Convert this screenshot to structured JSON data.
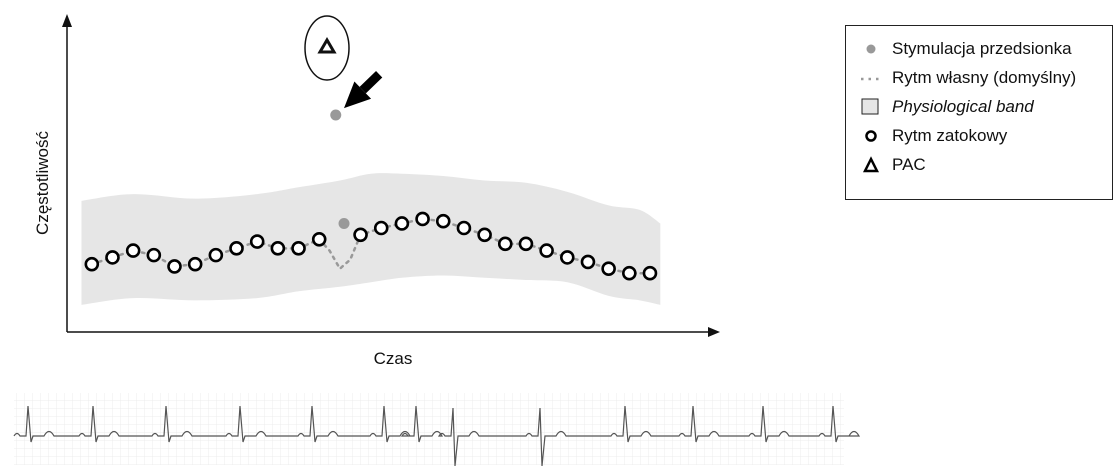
{
  "chart_data": {
    "type": "scatter",
    "xlabel": "Czas",
    "ylabel": "Częstotliwość",
    "legend_position": "top-right",
    "colors": {
      "sinus": "#000000",
      "atrial_pacing": "#999999",
      "intrinsic_rhythm": "#999999",
      "band": "#e6e6e6",
      "pac": "#000000"
    },
    "legend": [
      {
        "symbol": "filled-circle-gray",
        "label": "Stymulacja przedsionka",
        "italic": false
      },
      {
        "symbol": "dotted-line-gray",
        "label": "Rytm własny (domyślny)",
        "italic": false
      },
      {
        "symbol": "gray-box",
        "label": "Physiological band",
        "italic": true
      },
      {
        "symbol": "open-circle",
        "label": "Rytm zatokowy",
        "italic": false
      },
      {
        "symbol": "triangle",
        "label": "PAC",
        "italic": false
      }
    ],
    "series": [
      {
        "name": "Rytm zatokowy",
        "marker": "open-circle",
        "x": [
          1,
          2,
          3,
          4,
          5,
          6,
          7,
          8,
          9,
          10,
          11,
          12,
          14,
          15,
          16,
          17,
          18,
          19,
          20,
          21,
          22,
          23,
          24,
          25,
          26,
          27,
          28
        ],
        "y": [
          30,
          33,
          36,
          34,
          29,
          30,
          34,
          37,
          40,
          37,
          37,
          41,
          43,
          46,
          48,
          50,
          49,
          46,
          43,
          39,
          39,
          36,
          33,
          31,
          28,
          26,
          26
        ]
      },
      {
        "name": "Stymulacja przedsionka",
        "marker": "filled-circle",
        "x": [
          13.2,
          12.8
        ],
        "y": [
          48,
          96
        ]
      },
      {
        "name": "Rytm własny (domyślny)",
        "marker": "dotted-line",
        "x": [
          1,
          2,
          3,
          4,
          5,
          6,
          7,
          8,
          9,
          10,
          11,
          12,
          12.5,
          13,
          13.5,
          14,
          15,
          16,
          17,
          18,
          19,
          20,
          21,
          22,
          23,
          24,
          25,
          26,
          27,
          28
        ],
        "y": [
          30,
          33,
          36,
          34,
          29,
          30,
          34,
          37,
          40,
          37,
          37,
          41,
          36,
          28,
          32,
          43,
          46,
          48,
          50,
          49,
          46,
          43,
          39,
          39,
          36,
          33,
          31,
          28,
          26,
          26
        ]
      }
    ],
    "physiological_band": {
      "x": [
        0.5,
        3,
        6,
        9,
        11,
        13,
        14.5,
        16,
        18,
        20,
        22,
        24,
        26,
        27.5,
        28.5
      ],
      "upper": [
        58,
        61,
        59,
        61,
        64,
        67,
        70,
        70,
        69,
        67,
        66,
        62,
        56,
        54,
        48
      ],
      "lower": [
        12,
        15,
        14,
        15,
        18,
        20,
        22,
        24,
        25,
        24,
        23,
        22,
        16,
        14,
        12
      ]
    },
    "pac_symbol": {
      "x": 12.4,
      "y": 128
    },
    "arrow": {
      "from": [
        14.9,
        114
      ],
      "to": [
        13.2,
        99
      ]
    },
    "xlim": [
      -0.2,
      31
    ],
    "ylim": [
      0,
      138
    ]
  }
}
